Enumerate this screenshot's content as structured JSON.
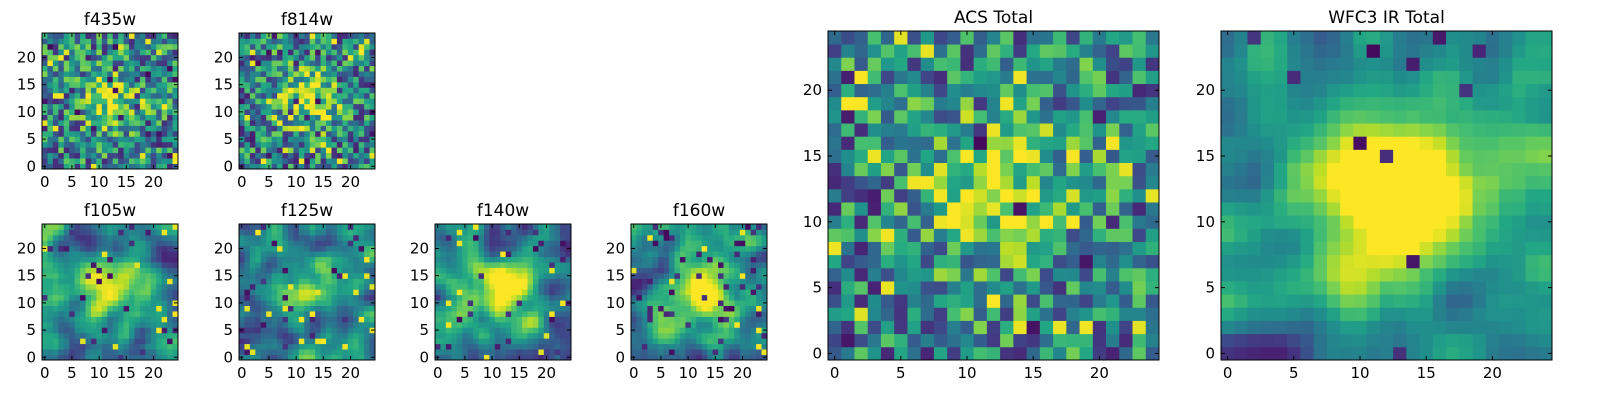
{
  "figure": {
    "background": "#ffffff",
    "axis_color": "#000000"
  },
  "chart_data": [
    {
      "type": "heatmap",
      "title": "f435w",
      "grid_size": 25,
      "xlim": [
        -0.5,
        24.5
      ],
      "ylim": [
        -0.5,
        24.5
      ],
      "xticks": [
        0,
        5,
        10,
        15,
        20
      ],
      "yticks": [
        0,
        5,
        10,
        15,
        20
      ],
      "colormap": "viridis",
      "texture": "noisy",
      "center_brightness": 0.4,
      "dark_outliers": 0.06,
      "bright_outliers": 0.05,
      "seed": 11
    },
    {
      "type": "heatmap",
      "title": "f814w",
      "grid_size": 25,
      "xlim": [
        -0.5,
        24.5
      ],
      "ylim": [
        -0.5,
        24.5
      ],
      "xticks": [
        0,
        5,
        10,
        15,
        20
      ],
      "yticks": [
        0,
        5,
        10,
        15,
        20
      ],
      "colormap": "viridis",
      "texture": "noisy",
      "center_brightness": 0.5,
      "dark_outliers": 0.05,
      "bright_outliers": 0.05,
      "seed": 23
    },
    {
      "type": "heatmap",
      "title": "f105w",
      "grid_size": 25,
      "xlim": [
        -0.5,
        24.5
      ],
      "ylim": [
        -0.5,
        24.5
      ],
      "xticks": [
        0,
        5,
        10,
        15,
        20
      ],
      "yticks": [
        0,
        5,
        10,
        15,
        20
      ],
      "colormap": "viridis",
      "texture": "smooth",
      "center_brightness": 0.55,
      "dark_outliers": 0.04,
      "bright_outliers": 0.02,
      "seed": 37
    },
    {
      "type": "heatmap",
      "title": "f125w",
      "grid_size": 25,
      "xlim": [
        -0.5,
        24.5
      ],
      "ylim": [
        -0.5,
        24.5
      ],
      "xticks": [
        0,
        5,
        10,
        15,
        20
      ],
      "yticks": [
        0,
        5,
        10,
        15,
        20
      ],
      "colormap": "viridis",
      "texture": "smooth",
      "center_brightness": 0.45,
      "dark_outliers": 0.04,
      "bright_outliers": 0.03,
      "seed": 41
    },
    {
      "type": "heatmap",
      "title": "f140w",
      "grid_size": 25,
      "xlim": [
        -0.5,
        24.5
      ],
      "ylim": [
        -0.5,
        24.5
      ],
      "xticks": [
        0,
        5,
        10,
        15,
        20
      ],
      "yticks": [
        0,
        5,
        10,
        15,
        20
      ],
      "colormap": "viridis",
      "texture": "smooth",
      "center_brightness": 0.6,
      "dark_outliers": 0.05,
      "bright_outliers": 0.02,
      "seed": 53
    },
    {
      "type": "heatmap",
      "title": "f160w",
      "grid_size": 25,
      "xlim": [
        -0.5,
        24.5
      ],
      "ylim": [
        -0.5,
        24.5
      ],
      "xticks": [
        0,
        5,
        10,
        15,
        20
      ],
      "yticks": [
        0,
        5,
        10,
        15,
        20
      ],
      "colormap": "viridis",
      "texture": "smooth",
      "center_brightness": 0.6,
      "dark_outliers": 0.05,
      "bright_outliers": 0.03,
      "seed": 67
    },
    {
      "type": "heatmap",
      "title": "ACS Total",
      "grid_size": 25,
      "xlim": [
        -0.5,
        24.5
      ],
      "ylim": [
        -0.5,
        24.5
      ],
      "xticks": [
        0,
        5,
        10,
        15,
        20
      ],
      "yticks": [
        0,
        5,
        10,
        15,
        20
      ],
      "colormap": "viridis",
      "texture": "noisy",
      "center_brightness": 0.5,
      "dark_outliers": 0.035,
      "bright_outliers": 0.03,
      "seed": 79
    },
    {
      "type": "heatmap",
      "title": "WFC3 IR Total",
      "grid_size": 25,
      "xlim": [
        -0.5,
        24.5
      ],
      "ylim": [
        -0.5,
        24.5
      ],
      "xticks": [
        0,
        5,
        10,
        15,
        20
      ],
      "yticks": [
        0,
        5,
        10,
        15,
        20
      ],
      "colormap": "viridis",
      "texture": "smooth",
      "center_brightness": 0.8,
      "dark_outliers": 0.025,
      "bright_outliers": 0.0,
      "seed": 97
    }
  ]
}
